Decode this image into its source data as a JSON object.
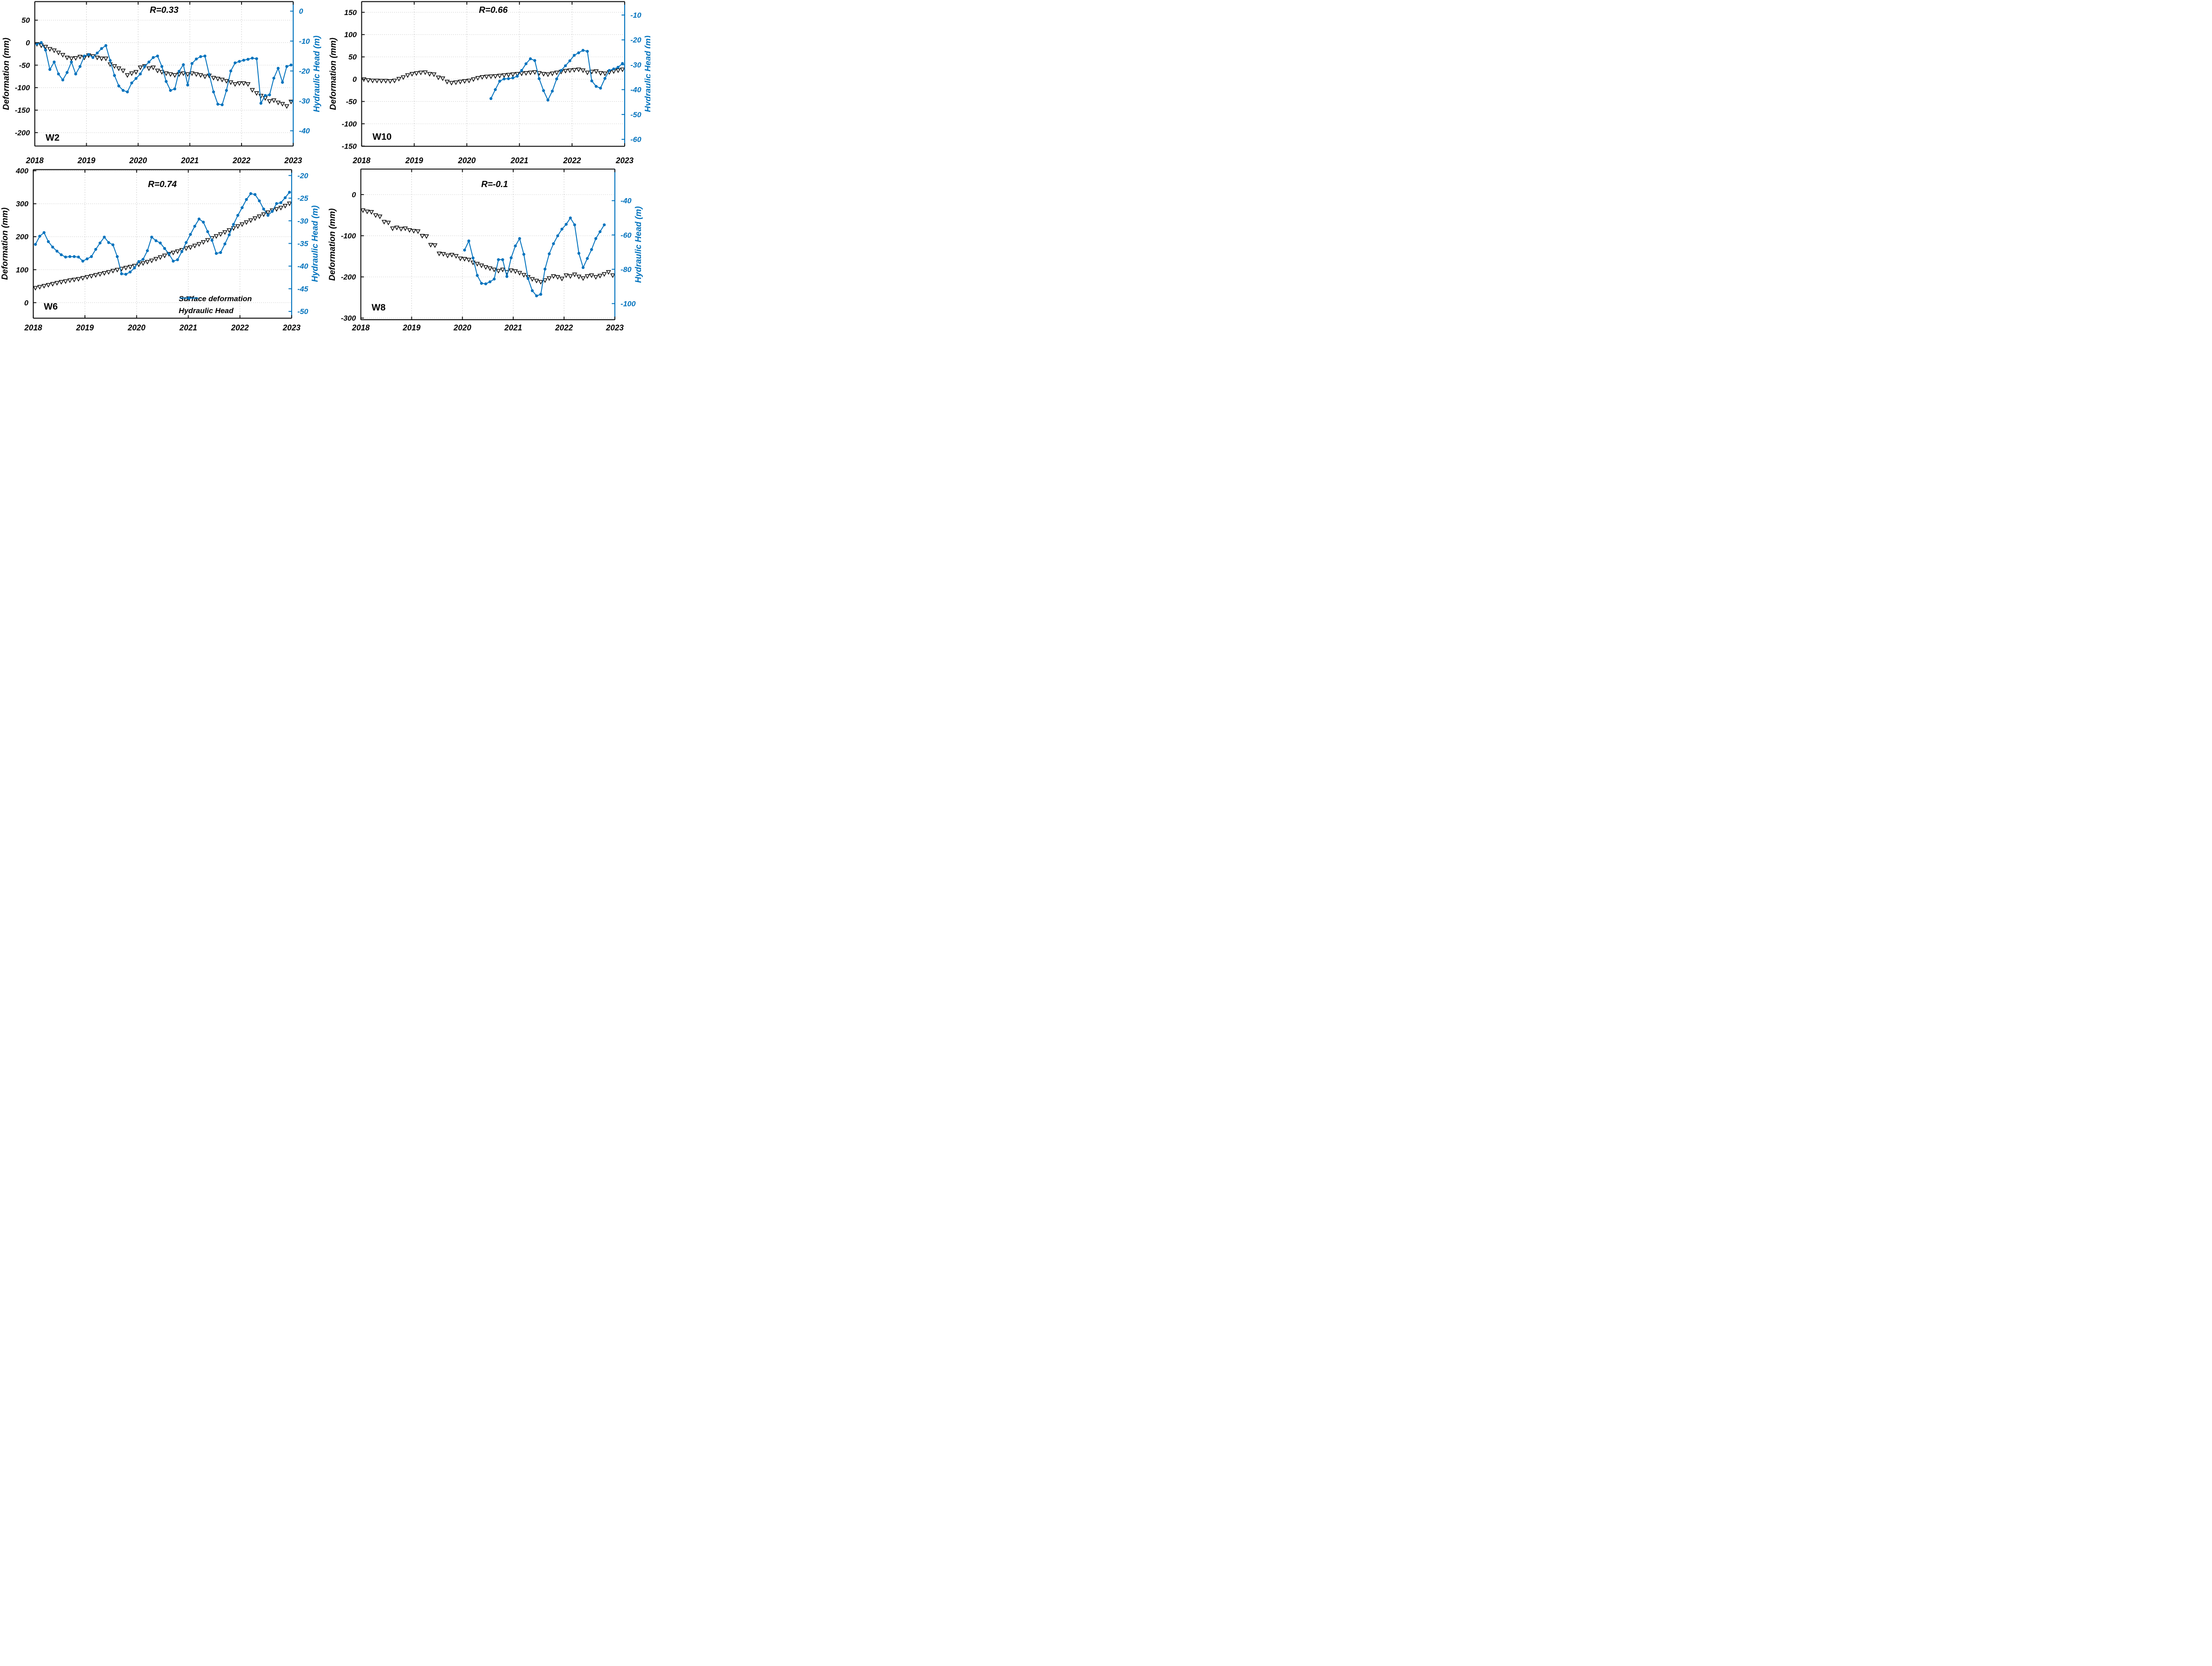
{
  "figure": {
    "type": "multi-panel time series",
    "rows": 2,
    "cols": 2,
    "background": "#ffffff"
  },
  "colors": {
    "head_line": "#0072BD",
    "deformation_marker_edge": "#000000",
    "marker_face": "#ffffff",
    "grid": "#c9c9c9",
    "spine": "#111111",
    "tick_label": "#000000"
  },
  "legend": {
    "position": "lower right of panel W6",
    "items": [
      {
        "label": "Surface deformation",
        "marker": "triangle-down-open",
        "color": "#000000"
      },
      {
        "label": "Hydraulic Head",
        "marker": "line-with-circle",
        "color": "#0072BD"
      }
    ]
  },
  "chart_data": [
    {
      "id": "W2",
      "type": "line",
      "label": "W2",
      "title": "R=0.33",
      "grid": true,
      "x": {
        "ticks": [
          2018,
          2019,
          2020,
          2021,
          2022,
          2023
        ],
        "lim": [
          2018,
          2023
        ]
      },
      "left": {
        "label": "Deformation (mm)",
        "ticks": [
          50,
          0,
          -50,
          -100,
          -150,
          -200
        ],
        "lim": [
          -229.8,
          91.3
        ]
      },
      "right": {
        "label": "Hydraulic Head (m)",
        "ticks": [
          0,
          -10,
          -20,
          -30,
          -40
        ],
        "lim": [
          -45.1,
          3.2
        ]
      },
      "series": {
        "deformation": {
          "name": "Surface deformation",
          "start": 2018.042,
          "step": 0.08333,
          "values": [
            -3,
            -6,
            -9,
            -14,
            -17,
            -22,
            -27,
            -33,
            -35,
            -34,
            -31,
            -33,
            -28,
            -30,
            -33,
            -35,
            -35,
            -48,
            -52,
            -57,
            -62,
            -72,
            -68,
            -65,
            -55,
            -52,
            -57,
            -55,
            -62,
            -65,
            -68,
            -70,
            -72,
            -70,
            -68,
            -70,
            -68,
            -70,
            -72,
            -75,
            -73,
            -78,
            -80,
            -82,
            -85,
            -88,
            -92,
            -90,
            -90,
            -92,
            -105,
            -112,
            -118,
            -123,
            -130,
            -128,
            -133,
            -136,
            -141,
            -131
          ]
        },
        "head": {
          "name": "Hydraulic Head",
          "start": 2018.042,
          "step": 0.08333,
          "values": [
            -11,
            -10.5,
            -13,
            -19.5,
            -17,
            -21,
            -23,
            -20.5,
            -17,
            -21,
            -18.5,
            -15,
            -14.5,
            -15.5,
            -14,
            -12.5,
            -11.5,
            -16.5,
            -21.5,
            -25,
            -26.5,
            -27,
            -24,
            -22.5,
            -21,
            -18.5,
            -17,
            -15.5,
            -15,
            -18.5,
            -23.5,
            -26.5,
            -26,
            -20.1,
            -17.9,
            -24.7,
            -17.5,
            -16,
            -15.2,
            -15,
            -21.2,
            -27,
            -31.1,
            -31.3,
            -26.5,
            -20,
            -17.3,
            -16.8,
            -16.4,
            -16.1,
            -15.7,
            -15.9,
            -30.8,
            -28.2,
            -28,
            -22.4,
            -19.1,
            -23.8,
            -18.5,
            -18
          ]
        }
      }
    },
    {
      "id": "W10",
      "type": "line",
      "label": "W10",
      "title": "R=0.66",
      "grid": true,
      "x": {
        "ticks": [
          2018,
          2019,
          2020,
          2021,
          2022,
          2023
        ],
        "lim": [
          2018,
          2023
        ]
      },
      "left": {
        "label": "Deformation (mm)",
        "ticks": [
          150,
          100,
          50,
          0,
          -50,
          -100,
          -150
        ],
        "lim": [
          -150.5,
          174
        ]
      },
      "right": {
        "label": "Hydraulic Head (m)",
        "ticks": [
          -10,
          -20,
          -30,
          -40,
          -50,
          -60
        ],
        "lim": [
          -62.8,
          -4.6
        ]
      },
      "series": {
        "deformation": {
          "name": "Surface deformation",
          "start": 2018.042,
          "step": 0.08333,
          "values": [
            0,
            -2,
            -3,
            -3,
            -3.5,
            -3.5,
            -4,
            -3,
            1,
            4.5,
            9,
            12,
            13.5,
            15,
            15.5,
            12,
            11,
            4,
            2,
            -5.5,
            -8,
            -7,
            -5.5,
            -4,
            -3,
            0,
            3,
            5,
            6,
            6.5,
            7,
            8,
            9,
            10,
            11,
            12,
            13,
            14,
            15,
            16,
            14,
            12,
            11,
            13,
            15,
            17,
            19,
            20,
            21,
            22,
            20,
            15,
            17,
            18,
            14,
            13,
            16,
            18,
            20,
            22
          ]
        },
        "head": {
          "name": "Hydraulic Head",
          "start": 2020.458,
          "step": 0.08333,
          "values": [
            -43.6,
            -40,
            -36.6,
            -35.7,
            -35.6,
            -35.3,
            -34.6,
            -32.3,
            -29.6,
            -27.6,
            -28.3,
            -35.6,
            -40.4,
            -44.2,
            -40.6,
            -35.7,
            -32.3,
            -30.4,
            -28.4,
            -26.2,
            -25.2,
            -24.2,
            -24.6,
            -36.5,
            -38.7,
            -39.4,
            -35.5,
            -32.3,
            -31.7,
            -31,
            -29.5
          ]
        }
      }
    },
    {
      "id": "W6",
      "type": "line",
      "label": "W6",
      "title": "R=0.74",
      "grid": true,
      "show_legend": true,
      "x": {
        "ticks": [
          2018,
          2019,
          2020,
          2021,
          2022,
          2023
        ],
        "lim": [
          2018,
          2023
        ]
      },
      "left": {
        "label": "Deformation (mm)",
        "ticks": [
          400,
          300,
          200,
          100,
          0
        ],
        "lim": [
          -47.2,
          403.5
        ]
      },
      "right": {
        "label": "Hydraulic Head (m)",
        "ticks": [
          -20,
          -25,
          -30,
          -35,
          -40,
          -45,
          -50
        ],
        "lim": [
          -51.5,
          -18.7
        ]
      },
      "series": {
        "deformation": {
          "name": "Surface deformation",
          "start": 2018.042,
          "step": 0.08333,
          "values": [
            45,
            48,
            51,
            54,
            57,
            60,
            63,
            65,
            68,
            70,
            72,
            75,
            78,
            81,
            84,
            87,
            90,
            93,
            97,
            100,
            103,
            106,
            109,
            112,
            116,
            120,
            124,
            128,
            133,
            138,
            143,
            148,
            152,
            156,
            160,
            165,
            168,
            173,
            178,
            184,
            190,
            196,
            202,
            208,
            214,
            220,
            226,
            232,
            238,
            244,
            250,
            256,
            262,
            268,
            274,
            280,
            284,
            288,
            294,
            301
          ]
        },
        "head": {
          "name": "Hydraulic Head",
          "start": 2018.042,
          "step": 0.08333,
          "values": [
            -35.2,
            -33.4,
            -32.6,
            -34.6,
            -35.8,
            -36.7,
            -37.5,
            -38,
            -37.9,
            -37.9,
            -38,
            -38.9,
            -38.4,
            -37.9,
            -36.3,
            -34.9,
            -33.6,
            -34.8,
            -35.3,
            -37.9,
            -41.7,
            -41.8,
            -41.3,
            -40.4,
            -39,
            -38.5,
            -36.6,
            -33.6,
            -34.4,
            -34.9,
            -36.1,
            -37.3,
            -38.9,
            -38.6,
            -36.8,
            -34.8,
            -33,
            -31.2,
            -29.6,
            -30.3,
            -32.4,
            -34.3,
            -37.2,
            -37,
            -35.1,
            -33.1,
            -30.8,
            -28.8,
            -27.1,
            -25.3,
            -24,
            -24.2,
            -25.6,
            -27.4,
            -28.8,
            -27.9,
            -26.2,
            -26,
            -24.9,
            -23.7
          ]
        }
      }
    },
    {
      "id": "W8",
      "type": "line",
      "label": "W8",
      "title": "R=-0.1",
      "grid": true,
      "x": {
        "ticks": [
          2018,
          2019,
          2020,
          2021,
          2022,
          2023
        ],
        "lim": [
          2018,
          2023
        ]
      },
      "left": {
        "label": "Deformation (mm)",
        "ticks": [
          0,
          -100,
          -200,
          -300
        ],
        "lim": [
          -304,
          62
        ]
      },
      "right": {
        "label": "Hydraulic Head (m)",
        "ticks": [
          -40,
          -60,
          -80,
          -100
        ],
        "lim": [
          -109.4,
          -21.6
        ]
      },
      "series": {
        "deformation": {
          "name": "Surface deformation",
          "start": 2018.042,
          "step": 0.08333,
          "values": [
            -38,
            -41,
            -42,
            -50,
            -53,
            -66,
            -68,
            -82,
            -80,
            -83,
            -82,
            -86,
            -88,
            -89,
            -100,
            -101,
            -122,
            -123,
            -143,
            -144,
            -148,
            -146,
            -149,
            -155,
            -156,
            -158,
            -165,
            -168,
            -172,
            -176,
            -179,
            -182,
            -185,
            -182,
            -188,
            -184,
            -186,
            -190,
            -195,
            -200,
            -205,
            -209,
            -212,
            -208,
            -203,
            -198,
            -200,
            -204,
            -196,
            -198,
            -194,
            -199,
            -203,
            -198,
            -196,
            -200,
            -197,
            -193,
            -188,
            -196
          ]
        },
        "head": {
          "name": "Hydraulic Head",
          "start": 2020.042,
          "step": 0.08333,
          "values": [
            -68.8,
            -63.5,
            -73.4,
            -83.6,
            -88.2,
            -88.5,
            -87.3,
            -85.7,
            -74.4,
            -74.4,
            -84.2,
            -73.3,
            -66.4,
            -62.1,
            -71.3,
            -85.4,
            -92.5,
            -95.5,
            -94.6,
            -79.9,
            -71,
            -65.1,
            -60.5,
            -56.6,
            -53.8,
            -50.1,
            -54.1,
            -70.7,
            -79,
            -73.7,
            -68.5,
            -62.1,
            -58.1,
            -54.1
          ]
        }
      }
    }
  ]
}
